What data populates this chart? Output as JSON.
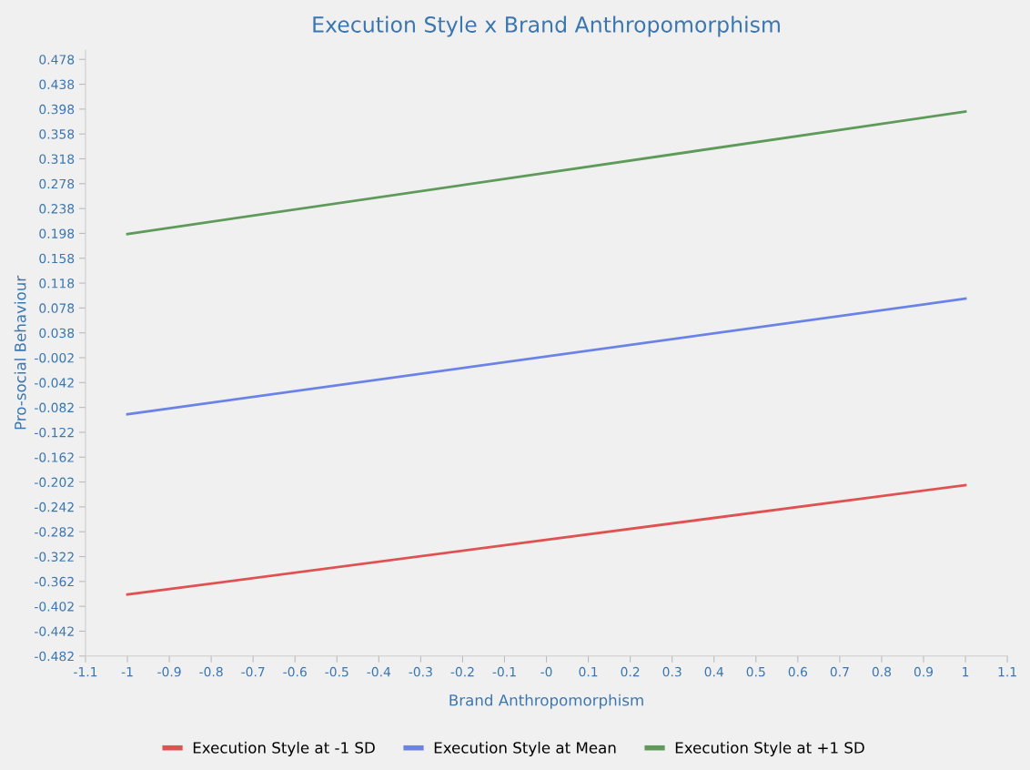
{
  "chart_data": {
    "type": "line",
    "title": "Execution Style x Brand Anthropomorphism",
    "xlabel": "Brand Anthropomorphism",
    "ylabel": "Pro-social Behaviour",
    "x": [
      -1,
      1
    ],
    "series": [
      {
        "name": "Execution Style at -1 SD",
        "color": "#e05252",
        "values": [
          -0.383,
          -0.207
        ]
      },
      {
        "name": "Execution Style at Mean",
        "color": "#6b83e6",
        "values": [
          -0.093,
          0.093
        ]
      },
      {
        "name": "Execution Style at +1 SD",
        "color": "#5e9b5a",
        "values": [
          0.197,
          0.394
        ]
      }
    ],
    "xlim": [
      -1.1,
      1.1
    ],
    "xticks": [
      -1.1,
      -1,
      -0.9,
      -0.8,
      -0.7,
      -0.6,
      -0.5,
      -0.4,
      -0.3,
      -0.2,
      -0.1,
      {
        "value": 0,
        "label": "-0"
      },
      0.1,
      0.2,
      0.3,
      0.4,
      0.5,
      0.6,
      0.7,
      0.8,
      0.9,
      1,
      1.1
    ],
    "ylim": [
      -0.482,
      0.493
    ],
    "yticks": [
      -0.482,
      -0.442,
      -0.402,
      -0.362,
      -0.322,
      -0.282,
      -0.242,
      -0.202,
      -0.162,
      -0.122,
      -0.082,
      -0.042,
      -0.002,
      0.038,
      0.078,
      0.118,
      0.158,
      0.198,
      0.238,
      0.278,
      0.318,
      0.358,
      0.398,
      0.438,
      0.478
    ],
    "grid": false,
    "legend": "bottom",
    "marker": "none",
    "line_style": "solid"
  }
}
